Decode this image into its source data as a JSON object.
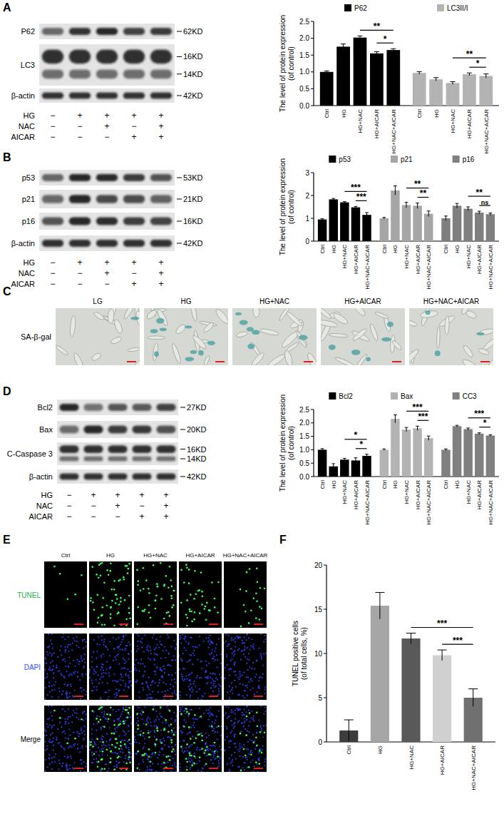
{
  "panel_labels": [
    "A",
    "B",
    "C",
    "D",
    "E",
    "F"
  ],
  "blots": [
    {
      "rows": [
        {
          "name": "P62",
          "kd": [
            "62KD"
          ]
        },
        {
          "name": "LC3",
          "kd": [
            "16KD",
            "14KD"
          ]
        },
        {
          "name": "β-actin",
          "kd": [
            "42KD"
          ]
        }
      ],
      "treatments": [
        {
          "name": "HG",
          "signs": [
            "−",
            "+",
            "+",
            "+",
            "+"
          ]
        },
        {
          "name": "NAC",
          "signs": [
            "−",
            "−",
            "+",
            "−",
            "+"
          ]
        },
        {
          "name": "AICAR",
          "signs": [
            "−",
            "−",
            "−",
            "+",
            "+"
          ]
        }
      ]
    },
    {
      "rows": [
        {
          "name": "p53",
          "kd": [
            "53KD"
          ]
        },
        {
          "name": "p21",
          "kd": [
            "21KD"
          ]
        },
        {
          "name": "p16",
          "kd": [
            "16KD"
          ]
        },
        {
          "name": "β-actin",
          "kd": [
            "42KD"
          ]
        }
      ],
      "treatments": [
        {
          "name": "HG",
          "signs": [
            "−",
            "+",
            "+",
            "+",
            "+"
          ]
        },
        {
          "name": "NAC",
          "signs": [
            "−",
            "−",
            "+",
            "−",
            "+"
          ]
        },
        {
          "name": "AICAR",
          "signs": [
            "−",
            "−",
            "−",
            "+",
            "+"
          ]
        }
      ]
    },
    {
      "rows": [
        {
          "name": "Bcl2",
          "kd": [
            "27KD"
          ]
        },
        {
          "name": "Bax",
          "kd": [
            "20KD"
          ]
        },
        {
          "name": "C-Caspase 3",
          "kd": [
            "16KD",
            "14KD"
          ]
        },
        {
          "name": "β-actin",
          "kd": [
            "42KD"
          ]
        }
      ],
      "treatments": [
        {
          "name": "HG",
          "signs": [
            "−",
            "+",
            "+",
            "+",
            "+"
          ]
        },
        {
          "name": "NAC",
          "signs": [
            "−",
            "−",
            "+",
            "−",
            "+"
          ]
        },
        {
          "name": "AICAR",
          "signs": [
            "−",
            "−",
            "−",
            "+",
            "+"
          ]
        }
      ]
    }
  ],
  "micrographs": [
    {
      "columns": [
        "LG",
        "HG",
        "HG+NAC",
        "HG+AICAR",
        "HG+NAC+AICAR"
      ],
      "rows": [
        "SA-β-gal"
      ]
    },
    {
      "columns": [
        "Ctrl",
        "HG",
        "HG+NAC",
        "HG+AICAR",
        "HG+NAC+AICAR"
      ],
      "rows": [
        "TUNEL",
        "DAPI",
        "Merge"
      ]
    }
  ],
  "chart_data": [
    {
      "type": "bar",
      "y_label": [
        "The level of protein expression",
        "(of control)"
      ],
      "categories": [
        "Ctrl",
        "HG",
        "HG+NAC",
        "HG+AICAR",
        "HG+NAC+AICAR"
      ],
      "series": [
        {
          "name": "P62",
          "color": "#000000",
          "values": [
            1.0,
            1.75,
            2.02,
            1.55,
            1.65
          ],
          "errors": [
            0.03,
            0.08,
            0.05,
            0.05,
            0.04
          ]
        },
        {
          "name": "LC3II/I",
          "color": "#b3b3b3",
          "values": [
            0.97,
            0.78,
            0.67,
            0.93,
            0.88
          ],
          "errors": [
            0.04,
            0.05,
            0.04,
            0.04,
            0.06
          ]
        }
      ],
      "ylim": [
        0,
        2.5
      ],
      "yticks": [
        {
          "value": 0,
          "label": "0.0"
        },
        {
          "value": 0.5,
          "label": "0.5"
        },
        {
          "value": 1,
          "label": "1.0"
        },
        {
          "value": 1.5,
          "label": "1.5"
        },
        {
          "value": 2,
          "label": "2.0"
        },
        {
          "value": 2.5,
          "label": "2.5"
        }
      ],
      "legend": "top",
      "comparisons": [
        {
          "series": 0,
          "from": 3,
          "to": 4,
          "label": "*"
        },
        {
          "series": 0,
          "from": 2,
          "to": 4,
          "label": "**"
        },
        {
          "series": 1,
          "from": 3,
          "to": 4,
          "label": "*"
        },
        {
          "series": 1,
          "from": 2,
          "to": 4,
          "label": "**"
        }
      ]
    },
    {
      "type": "bar",
      "y_label": [
        "The level of protein expression",
        "(of control)"
      ],
      "categories": [
        "Ctrl",
        "HG",
        "HG+NAC",
        "HG+AICAR",
        "HG+NAC+AICAR"
      ],
      "series": [
        {
          "name": "p53",
          "color": "#000000",
          "values": [
            0.95,
            1.83,
            1.7,
            1.48,
            1.15
          ],
          "errors": [
            0.03,
            0.04,
            0.03,
            0.04,
            0.1
          ]
        },
        {
          "name": "p21",
          "color": "#a6a6a6",
          "values": [
            1.0,
            2.22,
            1.58,
            1.55,
            1.2
          ],
          "errors": [
            0.04,
            0.2,
            0.12,
            0.12,
            0.12
          ]
        },
        {
          "name": "p16",
          "color": "#7f7f7f",
          "values": [
            1.0,
            1.55,
            1.42,
            1.25,
            1.18
          ],
          "errors": [
            0.1,
            0.1,
            0.08,
            0.06,
            0.05
          ]
        }
      ],
      "ylim": [
        0,
        3
      ],
      "yticks": [
        0,
        1,
        2,
        3
      ],
      "legend": "top",
      "comparisons": [
        {
          "series": 0,
          "from": 3,
          "to": 4,
          "label": "***"
        },
        {
          "series": 0,
          "from": 2,
          "to": 4,
          "label": "***"
        },
        {
          "series": 1,
          "from": 3,
          "to": 4,
          "label": "**"
        },
        {
          "series": 1,
          "from": 2,
          "to": 4,
          "label": "**"
        },
        {
          "series": 2,
          "from": 3,
          "to": 4,
          "label": "ns"
        },
        {
          "series": 2,
          "from": 2,
          "to": 4,
          "label": "**"
        }
      ]
    },
    {
      "type": "bar",
      "y_label": [
        "The level of protein expression",
        "(of control)"
      ],
      "categories": [
        "Ctrl",
        "HG",
        "HG+NAC",
        "HG+AICAR",
        "HG+NAC+AICAR"
      ],
      "series": [
        {
          "name": "Bcl2",
          "color": "#000000",
          "values": [
            1.0,
            0.38,
            0.63,
            0.6,
            0.77
          ],
          "errors": [
            0.04,
            0.1,
            0.05,
            0.1,
            0.06
          ]
        },
        {
          "name": "Bax",
          "color": "#b3b3b3",
          "values": [
            1.0,
            2.15,
            1.75,
            1.8,
            1.43
          ],
          "errors": [
            0.03,
            0.15,
            0.08,
            0.08,
            0.08
          ]
        },
        {
          "name": "CC3",
          "color": "#808080",
          "values": [
            1.0,
            1.88,
            1.77,
            1.6,
            1.53
          ],
          "errors": [
            0.03,
            0.03,
            0.04,
            0.03,
            0.03
          ]
        }
      ],
      "ylim": [
        0,
        2.5
      ],
      "yticks": [
        {
          "value": 0,
          "label": "0.0"
        },
        {
          "value": 0.5,
          "label": "0.5"
        },
        {
          "value": 1,
          "label": "1.0"
        },
        {
          "value": 1.5,
          "label": "1.5"
        },
        {
          "value": 2,
          "label": "2.0"
        },
        {
          "value": 2.5,
          "label": "2.5"
        }
      ],
      "legend": "top",
      "comparisons": [
        {
          "series": 0,
          "from": 3,
          "to": 4,
          "label": "*"
        },
        {
          "series": 0,
          "from": 2,
          "to": 4,
          "label": "*"
        },
        {
          "series": 1,
          "from": 3,
          "to": 4,
          "label": "***"
        },
        {
          "series": 1,
          "from": 2,
          "to": 4,
          "label": "***"
        },
        {
          "series": 2,
          "from": 3,
          "to": 4,
          "label": "*"
        },
        {
          "series": 2,
          "from": 2,
          "to": 4,
          "label": "***"
        }
      ]
    },
    {
      "type": "bar",
      "y_label": [
        "TUNEL positive cells",
        "(of total cells, %)"
      ],
      "categories": [
        "Ctrl",
        "HG",
        "HG+NAC",
        "HG+AICAR",
        "HG+NAC+AICAR"
      ],
      "series": [
        {
          "values": [
            1.3,
            15.4,
            11.7,
            9.8,
            5.0
          ],
          "errors": [
            1.2,
            1.5,
            0.6,
            0.6,
            1.0
          ]
        }
      ],
      "colors": [
        "#3c3c3c",
        "#a6a6a6",
        "#595959",
        "#d0d0d0",
        "#707070"
      ],
      "ylim": [
        0,
        20
      ],
      "yticks": [
        0,
        5,
        10,
        15,
        20
      ],
      "comparisons": [
        {
          "series": 0,
          "from": 3,
          "to": 4,
          "label": "***"
        },
        {
          "series": 0,
          "from": 2,
          "to": 4,
          "label": "***"
        }
      ]
    }
  ]
}
